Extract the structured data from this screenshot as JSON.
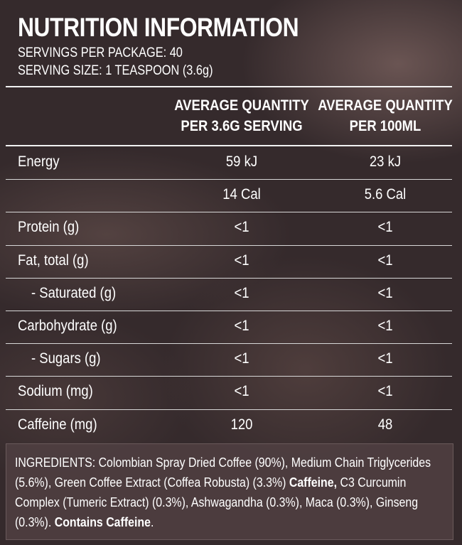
{
  "title": "NUTRITION INFORMATION",
  "servings_per_package": "SERVINGS PER PACKAGE: 40",
  "serving_size": "SERVING SIZE: 1 TEASPOON (3.6g)",
  "table": {
    "header": [
      [
        "AVERAGE QUANTITY",
        "PER 3.6G SERVING"
      ],
      [
        "AVERAGE QUANTITY",
        "PER 100ML"
      ]
    ],
    "rows": [
      [
        "Energy",
        "59 kJ",
        "23 kJ"
      ],
      [
        null,
        "14 Cal",
        "5.6 Cal"
      ],
      [
        "Protein (g)",
        "<1",
        "<1"
      ],
      [
        "Fat, total (g)",
        "<1",
        "<1"
      ],
      [
        "- Saturated (g)",
        "<1",
        "<1"
      ],
      [
        "Carbohydrate (g)",
        "<1",
        "<1"
      ],
      [
        "- Sugars (g)",
        "<1",
        "<1"
      ],
      [
        "Sodium (mg)",
        "<1",
        "<1"
      ],
      [
        "Caffeine (mg)",
        "120",
        "48"
      ]
    ],
    "indented": [
      false,
      false,
      false,
      false,
      true,
      false,
      true,
      false,
      false
    ]
  },
  "ingredients": [
    {
      "text": "INGREDIENTS: Colombian Spray Dried Coffee (90%), Medium Chain Triglycerides (5.6%), Green Coffee Extract (Coffea Robusta) (3.3%) ",
      "bold": false
    },
    {
      "text": "Caffeine,",
      "bold": true
    },
    {
      "text": " C3 Curcumin Complex (Tumeric Extract) (0.3%), Ashwagandha (0.3%), Maca (0.3%), Ginseng (0.3%). ",
      "bold": false
    },
    {
      "text": "Contains Caffeine",
      "bold": true
    },
    {
      "text": ".",
      "bold": false
    }
  ]
}
